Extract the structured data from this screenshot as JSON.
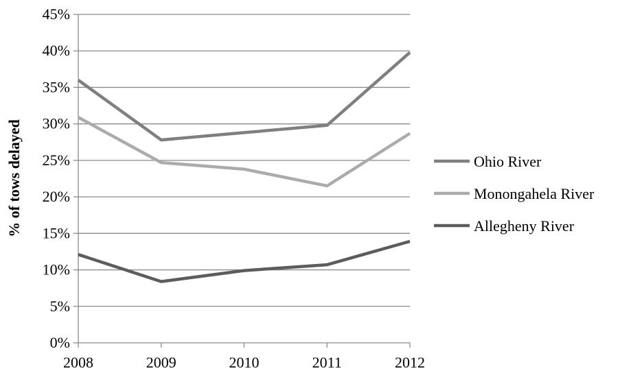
{
  "chart_data": {
    "type": "line",
    "title": "",
    "xlabel": "",
    "ylabel": "% of tows delayed",
    "x": [
      "2008",
      "2009",
      "2010",
      "2011",
      "2012"
    ],
    "ylim": [
      0,
      45
    ],
    "y_ticks": [
      "0%",
      "5%",
      "10%",
      "15%",
      "20%",
      "25%",
      "30%",
      "35%",
      "40%",
      "45%"
    ],
    "y_tick_values": [
      0,
      5,
      10,
      15,
      20,
      25,
      30,
      35,
      40,
      45
    ],
    "grid": true,
    "legend_position": "right",
    "series": [
      {
        "name": "Ohio River",
        "color": "#7f7f7f",
        "values": [
          36.0,
          27.8,
          28.8,
          29.8,
          39.8
        ]
      },
      {
        "name": "Monongahela River",
        "color": "#ababab",
        "values": [
          30.9,
          24.7,
          23.8,
          21.5,
          28.7
        ]
      },
      {
        "name": "Allegheny River",
        "color": "#5c5c5c",
        "values": [
          12.1,
          8.4,
          9.9,
          10.7,
          13.9
        ]
      }
    ]
  }
}
